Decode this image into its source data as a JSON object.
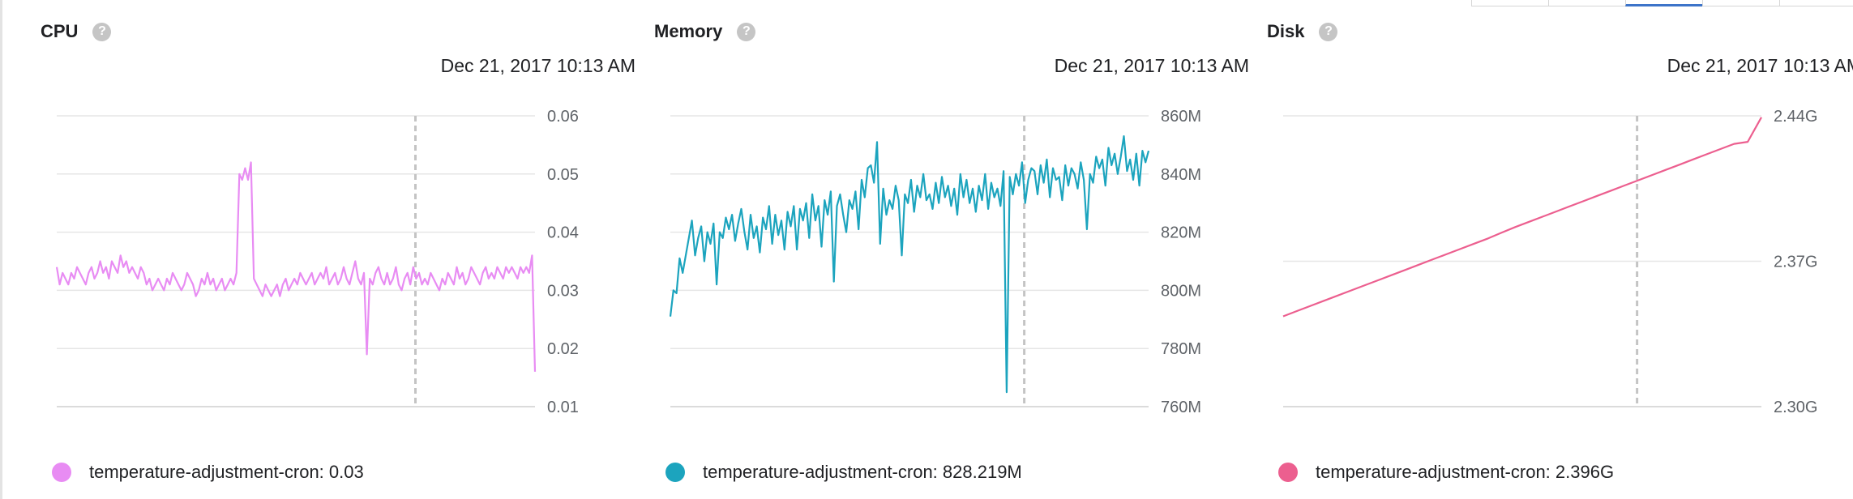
{
  "panels": [
    {
      "title": "CPU",
      "help_icon": "help-icon",
      "timestamp": "Dec 21, 2017 10:13 AM",
      "legend": {
        "label": "temperature-adjustment-cron: 0.03",
        "color": "#e88cf3"
      }
    },
    {
      "title": "Memory",
      "help_icon": "help-icon",
      "timestamp": "Dec 21, 2017 10:13 AM",
      "legend": {
        "label": "temperature-adjustment-cron: 828.219M",
        "color": "#1ca4be"
      }
    },
    {
      "title": "Disk",
      "help_icon": "help-icon",
      "timestamp": "Dec 21, 2017 10:13 AM",
      "legend": {
        "label": "temperature-adjustment-cron: 2.396G",
        "color": "#ec5f8f"
      }
    }
  ],
  "chart_data": [
    {
      "type": "line",
      "title": "CPU",
      "yticks": [
        "0.06",
        "0.05",
        "0.04",
        "0.03",
        "0.02",
        "0.01"
      ],
      "ylim": [
        0.01,
        0.06
      ],
      "grid": true,
      "cursor_fraction": 0.75,
      "color": "#e88cf3",
      "series": [
        {
          "name": "temperature-adjustment-cron",
          "values": [
            0.034,
            0.031,
            0.033,
            0.032,
            0.031,
            0.033,
            0.032,
            0.034,
            0.033,
            0.032,
            0.031,
            0.033,
            0.034,
            0.032,
            0.033,
            0.035,
            0.033,
            0.034,
            0.032,
            0.035,
            0.034,
            0.033,
            0.036,
            0.034,
            0.035,
            0.033,
            0.034,
            0.033,
            0.032,
            0.034,
            0.033,
            0.031,
            0.032,
            0.03,
            0.031,
            0.032,
            0.031,
            0.03,
            0.032,
            0.031,
            0.033,
            0.032,
            0.031,
            0.03,
            0.031,
            0.033,
            0.032,
            0.031,
            0.029,
            0.03,
            0.032,
            0.031,
            0.033,
            0.031,
            0.032,
            0.03,
            0.031,
            0.032,
            0.03,
            0.031,
            0.032,
            0.031,
            0.033,
            0.05,
            0.049,
            0.051,
            0.049,
            0.052,
            0.032,
            0.031,
            0.03,
            0.029,
            0.031,
            0.03,
            0.029,
            0.03,
            0.031,
            0.029,
            0.031,
            0.032,
            0.03,
            0.031,
            0.032,
            0.031,
            0.033,
            0.032,
            0.031,
            0.032,
            0.033,
            0.031,
            0.032,
            0.033,
            0.032,
            0.034,
            0.031,
            0.032,
            0.033,
            0.031,
            0.032,
            0.034,
            0.032,
            0.031,
            0.033,
            0.035,
            0.032,
            0.031,
            0.033,
            0.019,
            0.032,
            0.031,
            0.033,
            0.034,
            0.032,
            0.031,
            0.033,
            0.031,
            0.032,
            0.034,
            0.031,
            0.03,
            0.032,
            0.033,
            0.031,
            0.034,
            0.032,
            0.033,
            0.031,
            0.032,
            0.031,
            0.033,
            0.032,
            0.031,
            0.03,
            0.032,
            0.031,
            0.033,
            0.032,
            0.031,
            0.034,
            0.032,
            0.033,
            0.031,
            0.032,
            0.034,
            0.033,
            0.032,
            0.031,
            0.033,
            0.034,
            0.032,
            0.033,
            0.032,
            0.034,
            0.033,
            0.032,
            0.034,
            0.033,
            0.034,
            0.033,
            0.032,
            0.034,
            0.033,
            0.034,
            0.033,
            0.036,
            0.016
          ]
        }
      ]
    },
    {
      "type": "line",
      "title": "Memory",
      "yticks": [
        "860M",
        "840M",
        "820M",
        "800M",
        "780M",
        "760M"
      ],
      "ylim": [
        760,
        860
      ],
      "grid": true,
      "cursor_fraction": 0.74,
      "color": "#1ca4be",
      "series": [
        {
          "name": "temperature-adjustment-cron",
          "values": [
            791,
            800,
            799,
            811,
            806,
            812,
            818,
            824,
            812,
            818,
            822,
            810,
            820,
            816,
            823,
            802,
            820,
            818,
            825,
            821,
            826,
            817,
            823,
            828,
            820,
            814,
            826,
            818,
            822,
            813,
            825,
            821,
            829,
            816,
            826,
            819,
            824,
            814,
            827,
            822,
            829,
            814,
            828,
            824,
            830,
            818,
            833,
            824,
            829,
            815,
            831,
            826,
            834,
            803,
            829,
            833,
            826,
            820,
            831,
            828,
            834,
            821,
            838,
            832,
            842,
            843,
            837,
            851,
            816,
            835,
            826,
            831,
            828,
            836,
            831,
            812,
            833,
            830,
            838,
            827,
            836,
            832,
            840,
            831,
            833,
            828,
            837,
            830,
            839,
            832,
            836,
            829,
            835,
            826,
            840,
            832,
            838,
            830,
            835,
            827,
            836,
            831,
            840,
            828,
            837,
            832,
            835,
            829,
            841,
            765,
            839,
            833,
            840,
            836,
            844,
            830,
            838,
            842,
            841,
            833,
            843,
            837,
            845,
            832,
            842,
            838,
            839,
            831,
            843,
            836,
            842,
            840,
            835,
            844,
            838,
            821,
            840,
            837,
            846,
            842,
            845,
            836,
            849,
            843,
            847,
            840,
            846,
            853,
            841,
            845,
            838,
            847,
            836,
            848,
            844,
            848
          ]
        }
      ]
    },
    {
      "type": "line",
      "title": "Disk",
      "yticks": [
        "2.44G",
        "2.37G",
        "2.30G"
      ],
      "ylim": [
        2.3,
        2.44
      ],
      "grid": true,
      "cursor_fraction": 0.74,
      "color": "#ec5f8f",
      "series": [
        {
          "name": "temperature-adjustment-cron",
          "values": [
            2.3435,
            2.346,
            2.3485,
            2.351,
            2.3535,
            2.356,
            2.3585,
            2.361,
            2.3635,
            2.366,
            2.3685,
            2.371,
            2.3735,
            2.376,
            2.3785,
            2.381,
            2.3838,
            2.3865,
            2.389,
            2.3915,
            2.394,
            2.3965,
            2.399,
            2.4015,
            2.404,
            2.4065,
            2.409,
            2.4115,
            2.414,
            2.4165,
            2.419,
            2.4215,
            2.424,
            2.4265,
            2.4275,
            2.4393
          ]
        }
      ]
    }
  ]
}
